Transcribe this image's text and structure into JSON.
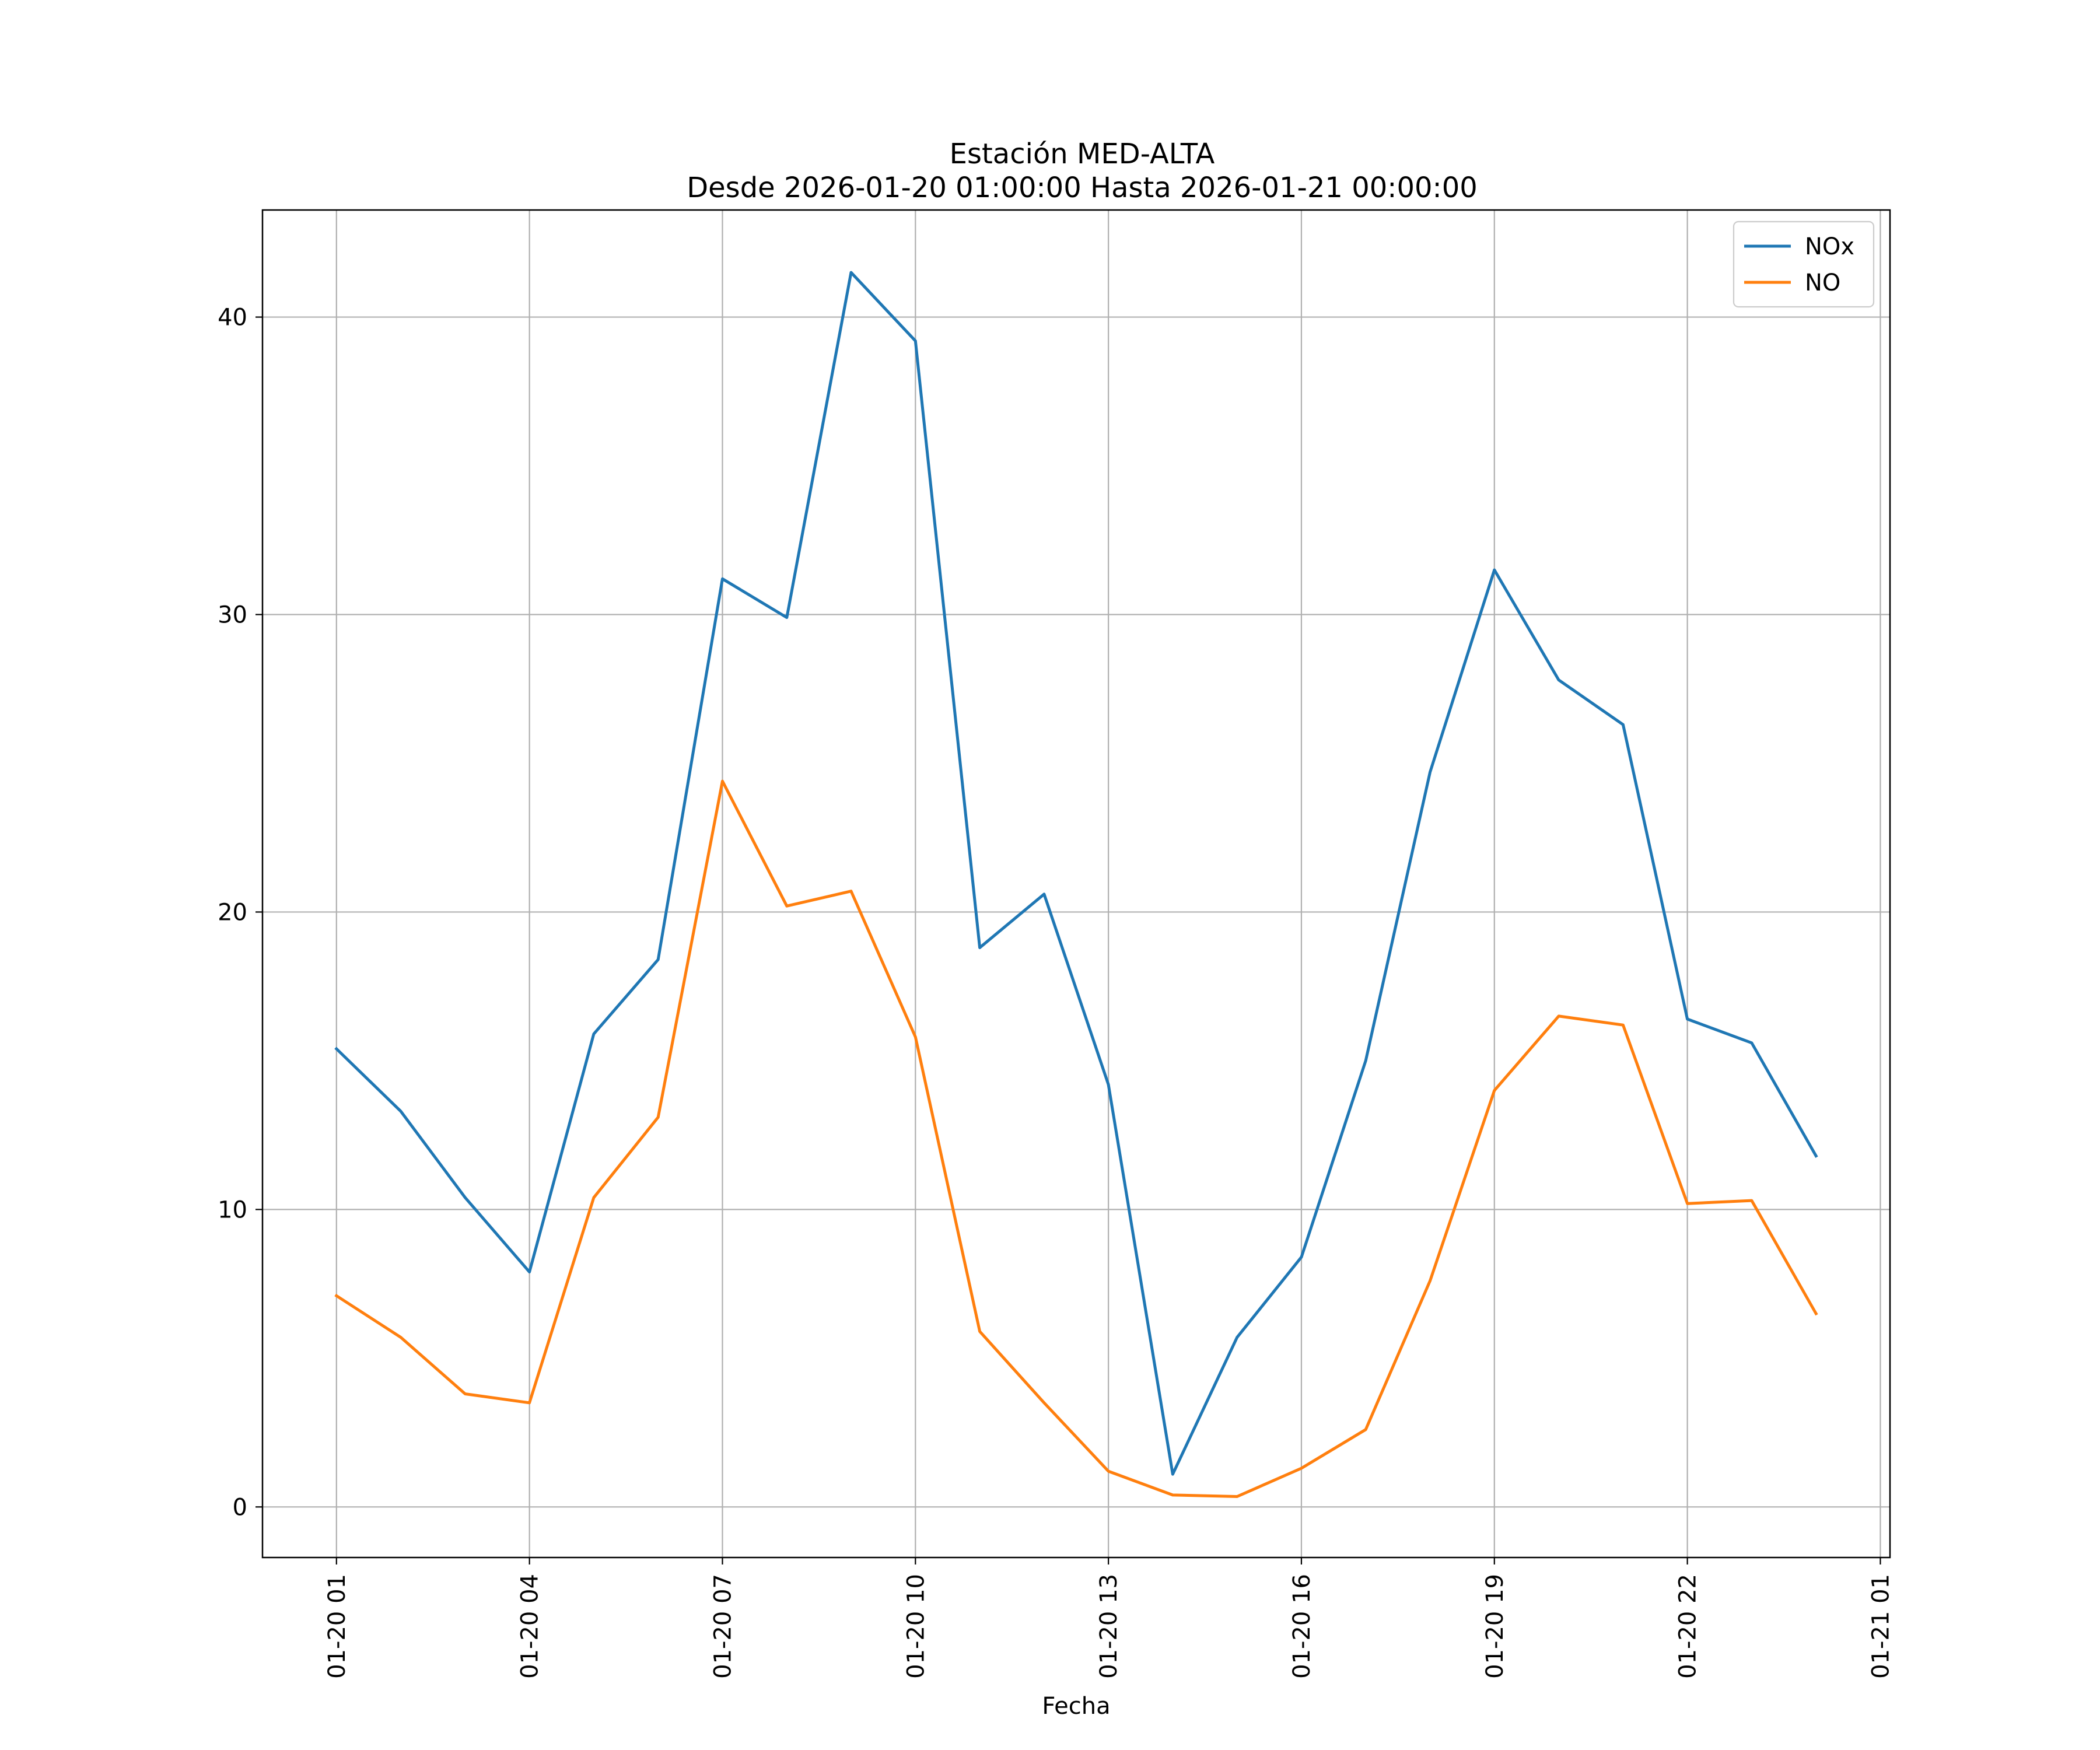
{
  "chart_data": {
    "type": "line",
    "title": "Estación MED-ALTA",
    "subtitle": "Desde 2026-01-20 01:00:00 Hasta 2026-01-21 00:00:00",
    "xlabel": "Fecha",
    "ylabel": "",
    "grid": true,
    "legend_position": "top-right",
    "x_hours": [
      1,
      2,
      3,
      4,
      5,
      6,
      7,
      8,
      9,
      10,
      11,
      12,
      13,
      14,
      15,
      16,
      17,
      18,
      19,
      20,
      21,
      22,
      23,
      24
    ],
    "xlim": [
      -0.15,
      25.15
    ],
    "ylim": [
      -1.7,
      43.6
    ],
    "x_ticks": [
      {
        "hour": 1,
        "label": "01-20 01"
      },
      {
        "hour": 4,
        "label": "01-20 04"
      },
      {
        "hour": 7,
        "label": "01-20 07"
      },
      {
        "hour": 10,
        "label": "01-20 10"
      },
      {
        "hour": 13,
        "label": "01-20 13"
      },
      {
        "hour": 16,
        "label": "01-20 16"
      },
      {
        "hour": 19,
        "label": "01-20 19"
      },
      {
        "hour": 22,
        "label": "01-20 22"
      },
      {
        "hour": 25,
        "label": "01-21 01"
      }
    ],
    "y_ticks": [
      {
        "value": 0,
        "label": "0"
      },
      {
        "value": 10,
        "label": "10"
      },
      {
        "value": 20,
        "label": "20"
      },
      {
        "value": 30,
        "label": "30"
      },
      {
        "value": 40,
        "label": "40"
      }
    ],
    "series": [
      {
        "name": "NOx",
        "color": "#1f77b4",
        "values": [
          15.4,
          13.3,
          10.4,
          7.9,
          15.9,
          18.4,
          31.2,
          29.9,
          41.5,
          39.2,
          18.8,
          20.6,
          14.2,
          1.1,
          5.7,
          8.4,
          15.0,
          24.7,
          31.5,
          27.8,
          26.3,
          16.4,
          15.6,
          11.8
        ]
      },
      {
        "name": "NO",
        "color": "#ff7f0e",
        "values": [
          7.1,
          5.7,
          3.8,
          3.5,
          10.4,
          13.1,
          24.4,
          20.2,
          20.7,
          15.8,
          5.9,
          3.5,
          1.2,
          0.4,
          0.35,
          1.3,
          2.6,
          7.6,
          14.0,
          16.5,
          16.2,
          10.2,
          10.3,
          6.5
        ]
      }
    ]
  }
}
